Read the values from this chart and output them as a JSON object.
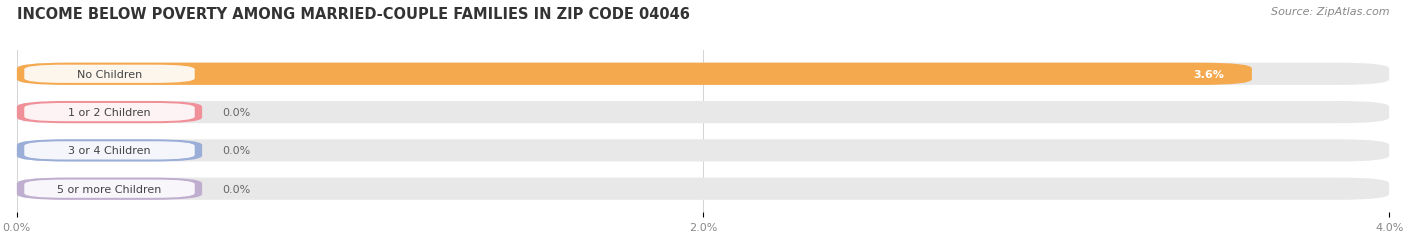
{
  "title": "INCOME BELOW POVERTY AMONG MARRIED-COUPLE FAMILIES IN ZIP CODE 04046",
  "source": "Source: ZipAtlas.com",
  "categories": [
    "No Children",
    "1 or 2 Children",
    "3 or 4 Children",
    "5 or more Children"
  ],
  "values": [
    3.6,
    0.0,
    0.0,
    0.0
  ],
  "bar_colors": [
    "#f5a94e",
    "#f09098",
    "#9aaed8",
    "#c0aed0"
  ],
  "background_color": "#ffffff",
  "bar_bg_color": "#e8e8e8",
  "xlim": [
    0,
    4.0
  ],
  "xticks": [
    0.0,
    2.0,
    4.0
  ],
  "xticklabels": [
    "0.0%",
    "2.0%",
    "4.0%"
  ],
  "title_fontsize": 10.5,
  "source_fontsize": 8,
  "label_fontsize": 8,
  "value_fontsize": 8,
  "bar_height": 0.58,
  "fig_width": 14.06,
  "fig_height": 2.32
}
